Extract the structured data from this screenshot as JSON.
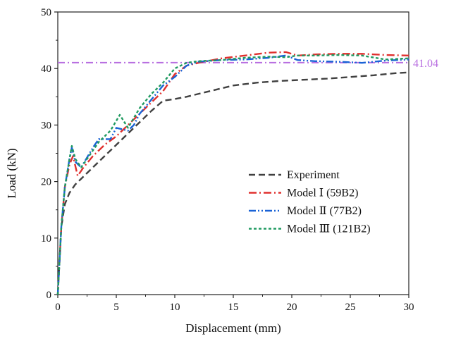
{
  "chart_data": {
    "type": "line",
    "xlabel": "Displacement (mm)",
    "ylabel": "Load (kN)",
    "xlim": [
      0,
      30
    ],
    "ylim": [
      0,
      50
    ],
    "xticks": [
      "0",
      "5",
      "10",
      "15",
      "20",
      "25",
      "30"
    ],
    "yticks": [
      "0",
      "10",
      "20",
      "30",
      "40",
      "50"
    ],
    "grid": false,
    "legend_position": "center-right",
    "reference_line": {
      "value": 41.04,
      "label": "41.04",
      "color": "#b86ee0"
    },
    "series": [
      {
        "name": "Experiment",
        "color": "#404040",
        "dash": "dashed",
        "x": [
          0,
          0.3,
          0.6,
          1.0,
          1.5,
          2.0,
          3.0,
          4.0,
          5.0,
          6.0,
          7.0,
          8.0,
          9.0,
          10.0,
          11.0,
          13.0,
          15.0,
          17.0,
          19.0,
          21.0,
          23.0,
          25.0,
          27.0,
          29.0,
          30.0
        ],
        "y": [
          0,
          12,
          16,
          18,
          19.5,
          20.5,
          22.5,
          24.5,
          26.5,
          28.5,
          30.5,
          32.5,
          34.3,
          34.6,
          35,
          36,
          37,
          37.5,
          37.8,
          38,
          38.2,
          38.5,
          38.8,
          39.2,
          39.3
        ]
      },
      {
        "name": "Model Ⅰ (59B2)",
        "color": "#e0302e",
        "dash": "dashdot",
        "x": [
          0,
          0.3,
          0.6,
          1.0,
          1.3,
          1.7,
          2.2,
          3.0,
          4.0,
          5.0,
          5.5,
          6.0,
          7.0,
          8.0,
          9.0,
          10.0,
          11.0,
          12.0,
          14.0,
          16.0,
          18.0,
          19.5,
          20.5,
          22.0,
          24.0,
          26.0,
          28.0,
          30.0
        ],
        "y": [
          0,
          12,
          19,
          23,
          24.5,
          21,
          22.5,
          24.5,
          26.5,
          28,
          29,
          30,
          32,
          34,
          36,
          39,
          40.5,
          41,
          41.8,
          42.3,
          42.8,
          42.9,
          42.3,
          42.5,
          42.6,
          42.6,
          42.4,
          42.3
        ]
      },
      {
        "name": "Model Ⅱ  (77B2)",
        "color": "#1a63d6",
        "dash": "dashdotdot",
        "x": [
          0,
          0.3,
          0.6,
          1.0,
          1.2,
          1.5,
          2.0,
          3.0,
          3.5,
          4.5,
          5.0,
          6.0,
          6.5,
          7.0,
          8.0,
          9.0,
          10.0,
          11.0,
          12.0,
          14.0,
          16.0,
          18.0,
          19.5,
          20.5,
          22.0,
          24.0,
          26.0,
          28.0,
          30.0
        ],
        "y": [
          0,
          12,
          19,
          24,
          26,
          23.5,
          22.5,
          26,
          27.5,
          27.5,
          29.5,
          29,
          30,
          32,
          34.5,
          37,
          38.5,
          40.5,
          41.2,
          41.5,
          41.6,
          41.9,
          42.3,
          41.5,
          41.3,
          41.2,
          41.0,
          41.4,
          41.6
        ]
      },
      {
        "name": "Model Ⅲ  (121B2)",
        "color": "#1f9a60",
        "dash": "dotted",
        "x": [
          0,
          0.3,
          0.6,
          1.0,
          1.2,
          1.5,
          2.0,
          3.0,
          3.5,
          4.5,
          5.3,
          6.0,
          7.0,
          8.0,
          9.0,
          10.0,
          11.0,
          12.0,
          14.0,
          16.0,
          18.0,
          19.5,
          20.5,
          22.0,
          24.0,
          26.0,
          28.0,
          30.0
        ],
        "y": [
          0,
          12,
          19,
          24,
          26.3,
          24,
          22.5,
          25.5,
          27,
          29,
          31.8,
          29.5,
          33,
          35.5,
          37.5,
          40,
          41,
          41.3,
          41.5,
          41.9,
          42.1,
          42.0,
          42.3,
          42.3,
          42.4,
          42.3,
          41.6,
          41.8
        ]
      }
    ]
  }
}
